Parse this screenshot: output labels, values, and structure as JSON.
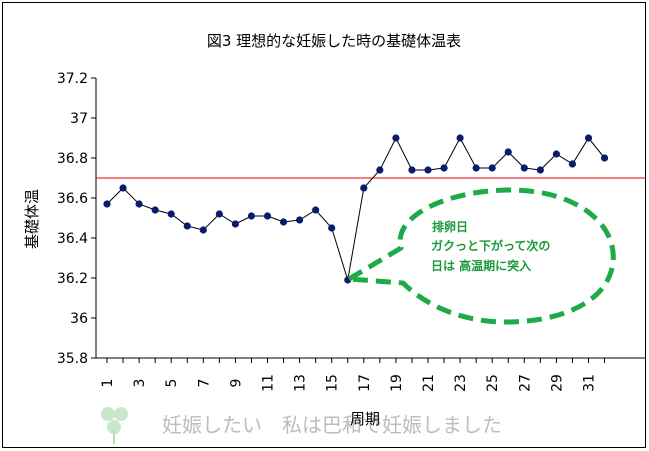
{
  "chart_data": {
    "type": "line",
    "title": "図3  理想的な妊娠した時の基礎体温表",
    "xlabel": "周期",
    "ylabel": "基礎体温",
    "ylim": [
      35.8,
      37.2
    ],
    "yticks": [
      "35.8",
      "36",
      "36.2",
      "36.4",
      "36.6",
      "36.8",
      "37",
      "37.2"
    ],
    "xticks": [
      "1",
      "3",
      "5",
      "7",
      "9",
      "11",
      "13",
      "15",
      "17",
      "19",
      "21",
      "23",
      "25",
      "27",
      "29",
      "31"
    ],
    "x": [
      1,
      2,
      3,
      4,
      5,
      6,
      7,
      8,
      9,
      10,
      11,
      12,
      13,
      14,
      15,
      16,
      17,
      18,
      19,
      20,
      21,
      22,
      23,
      24,
      25,
      26,
      27,
      28,
      29,
      30,
      31,
      32
    ],
    "series": [
      {
        "values": [
          36.57,
          36.65,
          36.57,
          36.54,
          36.52,
          36.46,
          36.44,
          36.52,
          36.47,
          36.51,
          36.51,
          36.48,
          36.49,
          36.54,
          36.45,
          36.19,
          36.65,
          36.74,
          36.9,
          36.74,
          36.74,
          36.75,
          36.9,
          36.75,
          36.75,
          36.83,
          36.75,
          36.74,
          36.82,
          36.77,
          36.9,
          36.8
        ],
        "color": "#000000",
        "marker_color": "#0b1a6b"
      }
    ],
    "reference_line": {
      "y": 36.7,
      "color": "#dd0000"
    },
    "grid": false,
    "annotation": {
      "lines": [
        "排卵日",
        "ガクっと下がって次の",
        "日は 高温期に突入"
      ],
      "color": "#1a9a3a",
      "points_to_x": 16
    }
  },
  "watermark": {
    "text": "妊娠したい　私は巴和で妊娠しました",
    "icon": "clover-icon",
    "color": "#bdbdbd"
  }
}
